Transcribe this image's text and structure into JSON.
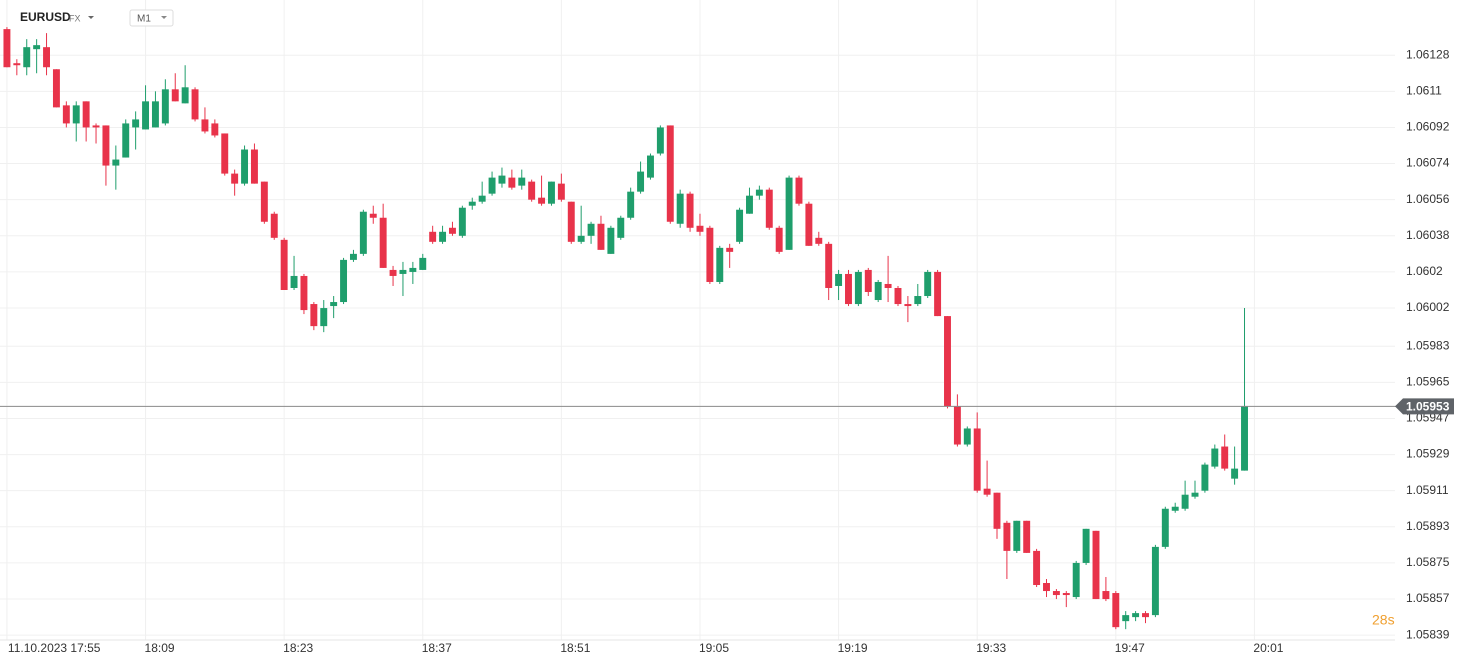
{
  "header": {
    "symbol": "EURUSD",
    "market": "FX",
    "timeframe": "M1"
  },
  "chart_data": {
    "type": "candlestick",
    "up_color": "#1f9e6c",
    "down_color": "#e8334a",
    "grid": true,
    "current_price": 1.05953,
    "countdown": "28s",
    "x": [
      1075,
      1076,
      1077,
      1078,
      1079,
      1080,
      1081,
      1082,
      1083,
      1084,
      1085,
      1086,
      1087,
      1088,
      1089,
      1090,
      1091,
      1092,
      1093,
      1094,
      1095,
      1096,
      1097,
      1098,
      1099,
      1100,
      1101,
      1102,
      1103,
      1104,
      1105,
      1106,
      1107,
      1108,
      1109,
      1110,
      1111,
      1112,
      1113,
      1114,
      1115,
      1116,
      1117,
      1118,
      1119,
      1120,
      1121,
      1122,
      1123,
      1124,
      1125,
      1126,
      1127,
      1128,
      1129,
      1130,
      1131,
      1132,
      1133,
      1134,
      1135,
      1136,
      1137,
      1138,
      1139,
      1140,
      1141,
      1142,
      1143,
      1144,
      1145,
      1146,
      1147,
      1148,
      1149,
      1150,
      1151,
      1152,
      1153,
      1154,
      1155,
      1156,
      1157,
      1158,
      1159,
      1160,
      1161,
      1162,
      1163,
      1164,
      1165,
      1166,
      1167,
      1168,
      1169,
      1170,
      1171,
      1172,
      1173,
      1174,
      1175,
      1176,
      1177,
      1178,
      1179,
      1180,
      1181,
      1182,
      1183,
      1184,
      1185,
      1186,
      1187,
      1188,
      1189,
      1190,
      1191,
      1192,
      1193,
      1194,
      1195,
      1196,
      1197,
      1198,
      1199,
      1200
    ],
    "open": [
      1.06141,
      1.06124,
      1.06122,
      1.06131,
      1.06132,
      1.06121,
      1.06103,
      1.06094,
      1.06105,
      1.06093,
      1.06093,
      1.06073,
      1.06077,
      1.06092,
      1.06091,
      1.06092,
      1.06094,
      1.06111,
      1.06104,
      1.06111,
      1.06096,
      1.06094,
      1.06089,
      1.06069,
      1.06064,
      1.06081,
      1.06065,
      1.06049,
      1.06036,
      1.06012,
      1.06018,
      1.06004,
      1.05993,
      1.06003,
      1.06005,
      1.06026,
      1.06029,
      1.06049,
      1.06047,
      1.06021,
      1.06019,
      1.0602,
      1.06021,
      1.0604,
      1.06035,
      1.06042,
      1.06038,
      1.06053,
      1.06055,
      1.06059,
      1.06064,
      1.06067,
      1.06063,
      1.06065,
      1.06057,
      1.06054,
      1.06064,
      1.06055,
      1.06035,
      1.06038,
      1.06044,
      1.06029,
      1.06037,
      1.06047,
      1.0606,
      1.06067,
      1.06079,
      1.06093,
      1.06044,
      1.06059,
      1.06043,
      1.06042,
      1.06015,
      1.06032,
      1.06035,
      1.06049,
      1.06058,
      1.06061,
      1.06042,
      1.06031,
      1.06067,
      1.06054,
      1.06037,
      1.06034,
      1.06013,
      1.06019,
      1.06004,
      1.06021,
      1.06006,
      1.06014,
      1.06012,
      1.06004,
      1.06004,
      1.06008,
      1.0602,
      1.05998,
      1.05953,
      1.05934,
      1.05942,
      1.05912,
      1.0591,
      1.05895,
      1.05881,
      1.05896,
      1.05881,
      1.05865,
      1.05861,
      1.0586,
      1.05858,
      1.05875,
      1.05891,
      1.05861,
      1.0586,
      1.05846,
      1.05848,
      1.0585,
      1.05849,
      1.05883,
      1.05901,
      1.05902,
      1.05908,
      1.05911,
      1.05923,
      1.05933,
      1.05917,
      1.05921
    ],
    "high": [
      1.06142,
      1.06126,
      1.06136,
      1.06136,
      1.06139,
      1.06121,
      1.06105,
      1.06105,
      1.06105,
      1.06094,
      1.06093,
      1.06083,
      1.06096,
      1.061,
      1.06113,
      1.0611,
      1.06116,
      1.06119,
      1.06123,
      1.06112,
      1.06102,
      1.06096,
      1.06089,
      1.06071,
      1.06083,
      1.06084,
      1.06065,
      1.0605,
      1.06037,
      1.06028,
      1.06019,
      1.06005,
      1.06006,
      1.06008,
      1.06027,
      1.06031,
      1.06051,
      1.06053,
      1.06054,
      1.06023,
      1.06025,
      1.06025,
      1.06029,
      1.06043,
      1.06043,
      1.06045,
      1.06053,
      1.06057,
      1.06065,
      1.0607,
      1.06072,
      1.06071,
      1.06071,
      1.06066,
      1.06068,
      1.06065,
      1.06069,
      1.06055,
      1.06053,
      1.06045,
      1.06048,
      1.06043,
      1.06048,
      1.06062,
      1.06075,
      1.06079,
      1.06093,
      1.06093,
      1.06061,
      1.0606,
      1.06049,
      1.06043,
      1.06033,
      1.06034,
      1.06052,
      1.06062,
      1.06063,
      1.06062,
      1.06043,
      1.06068,
      1.06068,
      1.06055,
      1.0604,
      1.06035,
      1.06021,
      1.06021,
      1.06021,
      1.06022,
      1.06016,
      1.06028,
      1.06013,
      1.06008,
      1.06014,
      1.06021,
      1.06021,
      1.05998,
      1.05959,
      1.05943,
      1.0595,
      1.05926,
      1.0591,
      1.05896,
      1.05896,
      1.05896,
      1.05882,
      1.05867,
      1.05862,
      1.05861,
      1.05876,
      1.05892,
      1.05891,
      1.05868,
      1.05861,
      1.05851,
      1.05851,
      1.05851,
      1.05884,
      1.05903,
      1.05905,
      1.05916,
      1.05916,
      1.05925,
      1.05934,
      1.05939,
      1.05933,
      1.06002
    ],
    "low": [
      1.06122,
      1.06118,
      1.06118,
      1.06119,
      1.06118,
      1.06102,
      1.06092,
      1.06085,
      1.06085,
      1.06084,
      1.06063,
      1.06061,
      1.06077,
      1.06081,
      1.06091,
      1.06092,
      1.06093,
      1.06105,
      1.06104,
      1.06095,
      1.06089,
      1.06087,
      1.06068,
      1.06058,
      1.06063,
      1.06064,
      1.06044,
      1.06036,
      1.06011,
      1.06011,
      1.05999,
      1.05991,
      1.0599,
      1.05997,
      1.06004,
      1.06025,
      1.06028,
      1.06044,
      1.06022,
      1.06013,
      1.06008,
      1.06014,
      1.06021,
      1.06034,
      1.06034,
      1.06038,
      1.06037,
      1.06051,
      1.06054,
      1.06058,
      1.06062,
      1.06061,
      1.06061,
      1.06055,
      1.06053,
      1.06053,
      1.06055,
      1.06034,
      1.06034,
      1.06034,
      1.06031,
      1.06029,
      1.06036,
      1.06046,
      1.06059,
      1.06066,
      1.06078,
      1.06044,
      1.06042,
      1.0604,
      1.06038,
      1.06014,
      1.06014,
      1.06022,
      1.06034,
      1.06049,
      1.06056,
      1.06041,
      1.06029,
      1.06031,
      1.06053,
      1.06033,
      1.06033,
      1.06006,
      1.06006,
      1.06003,
      1.06003,
      1.06008,
      1.06005,
      1.06005,
      1.06003,
      1.05995,
      1.06003,
      1.06007,
      1.05998,
      1.05952,
      1.05933,
      1.05933,
      1.0591,
      1.05908,
      1.05887,
      1.05867,
      1.0588,
      1.0588,
      1.05863,
      1.05858,
      1.05857,
      1.05853,
      1.05857,
      1.05874,
      1.05857,
      1.05856,
      1.05842,
      1.05842,
      1.05846,
      1.05845,
      1.05848,
      1.05882,
      1.059,
      1.05901,
      1.05907,
      1.0591,
      1.05922,
      1.05921,
      1.05914,
      1.05921
    ],
    "close": [
      1.06122,
      1.06123,
      1.06132,
      1.06133,
      1.06122,
      1.06102,
      1.06094,
      1.06103,
      1.06092,
      1.06092,
      1.06073,
      1.06076,
      1.06094,
      1.06096,
      1.06105,
      1.06105,
      1.06111,
      1.06105,
      1.06112,
      1.06096,
      1.0609,
      1.06088,
      1.06069,
      1.06064,
      1.06081,
      1.06064,
      1.06045,
      1.06037,
      1.06011,
      1.06018,
      1.06001,
      1.05993,
      1.06002,
      1.06005,
      1.06026,
      1.06029,
      1.0605,
      1.06047,
      1.06022,
      1.06018,
      1.06021,
      1.06022,
      1.06027,
      1.06035,
      1.0604,
      1.06039,
      1.06052,
      1.06055,
      1.06058,
      1.06067,
      1.06068,
      1.06062,
      1.06067,
      1.06056,
      1.06054,
      1.06065,
      1.06056,
      1.06035,
      1.06038,
      1.06044,
      1.06031,
      1.06042,
      1.06047,
      1.0606,
      1.0607,
      1.06078,
      1.06092,
      1.06045,
      1.06059,
      1.06042,
      1.0604,
      1.06015,
      1.06032,
      1.0603,
      1.06051,
      1.06058,
      1.06061,
      1.06042,
      1.0603,
      1.06067,
      1.06054,
      1.06033,
      1.06034,
      1.06012,
      1.06019,
      1.06004,
      1.0602,
      1.0601,
      1.06015,
      1.06012,
      1.06004,
      1.06003,
      1.06008,
      1.0602,
      1.05998,
      1.05953,
      1.05934,
      1.05942,
      1.05911,
      1.05909,
      1.05892,
      1.05881,
      1.05896,
      1.0588,
      1.05864,
      1.05861,
      1.05859,
      1.05859,
      1.05875,
      1.05892,
      1.05857,
      1.05857,
      1.05843,
      1.05849,
      1.0585,
      1.05848,
      1.05883,
      1.05902,
      1.05903,
      1.05909,
      1.0591,
      1.05924,
      1.05932,
      1.05922,
      1.05922,
      1.05953
    ],
    "xlim": [
      1074.3,
      1215.2
    ],
    "xticks": [
      {
        "value": 1075,
        "label": "11.10.2023  17:55"
      },
      {
        "value": 1089,
        "label": "18:09"
      },
      {
        "value": 1103,
        "label": "18:23"
      },
      {
        "value": 1117,
        "label": "18:37"
      },
      {
        "value": 1131,
        "label": "18:51"
      },
      {
        "value": 1145,
        "label": "19:05"
      },
      {
        "value": 1159,
        "label": "19:19"
      },
      {
        "value": 1173,
        "label": "19:33"
      },
      {
        "value": 1187,
        "label": "19:47"
      },
      {
        "value": 1201,
        "label": "20:01"
      }
    ],
    "ylim": [
      1.058366,
      1.061555
    ],
    "yticks": [
      1.06128,
      1.0611,
      1.06092,
      1.06074,
      1.06056,
      1.06038,
      1.0602,
      1.06002,
      1.05983,
      1.05965,
      1.05947,
      1.05929,
      1.05911,
      1.05893,
      1.05875,
      1.05857,
      1.05839
    ]
  }
}
